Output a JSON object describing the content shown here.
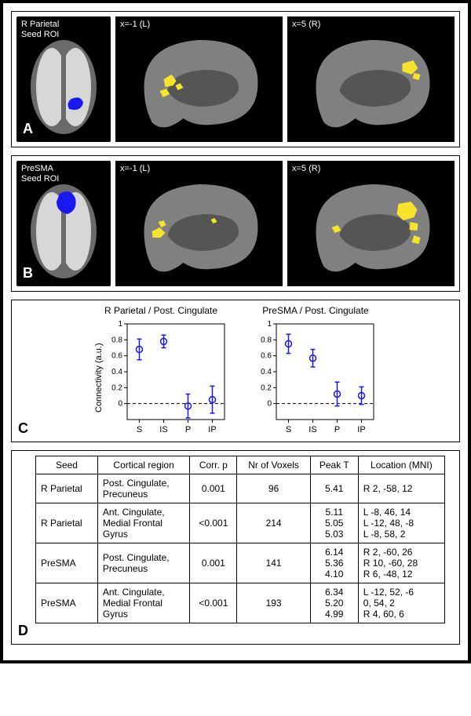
{
  "panelA": {
    "letter": "A",
    "axial_label": "R Parietal\nSeed ROI",
    "axial_seed_color": "#1818f0",
    "sag_left_label": "x=-1 (L)",
    "sag_right_label": "x=5 (R)",
    "activation_color": "#f7e22c",
    "brain_gray": "#6a6a6a",
    "brain_white": "#d7d7d7"
  },
  "panelB": {
    "letter": "B",
    "axial_label": "PreSMA\nSeed ROI",
    "axial_seed_color": "#1818f0",
    "sag_left_label": "x=-1 (L)",
    "sag_right_label": "x=5 (R)",
    "activation_color": "#f7e22c",
    "brain_gray": "#6a6a6a",
    "brain_white": "#d7d7d7"
  },
  "panelC": {
    "letter": "C",
    "y_label": "Connectivity (a.u.)",
    "dot_color": "#1818f0",
    "charts": [
      {
        "title": "R Parietal / Post. Cingulate",
        "ylim": [
          -0.2,
          1.0
        ],
        "yticks": [
          0,
          0.2,
          0.4,
          0.6,
          0.8,
          1.0
        ],
        "categories": [
          "S",
          "IS",
          "P",
          "IP"
        ],
        "values": [
          0.68,
          0.78,
          -0.03,
          0.05
        ],
        "errors": [
          0.13,
          0.08,
          0.15,
          0.17
        ]
      },
      {
        "title": "PreSMA / Post. Cingulate",
        "ylim": [
          -0.2,
          1.0
        ],
        "yticks": [
          0,
          0.2,
          0.4,
          0.6,
          0.8,
          1.0
        ],
        "categories": [
          "S",
          "IS",
          "P",
          "IP"
        ],
        "values": [
          0.75,
          0.57,
          0.12,
          0.1
        ],
        "errors": [
          0.12,
          0.11,
          0.15,
          0.11
        ]
      }
    ]
  },
  "panelD": {
    "letter": "D",
    "columns": [
      "Seed",
      "Cortical region",
      "Corr. p",
      "Nr of Voxels",
      "Peak T",
      "Location (MNI)"
    ],
    "rows": [
      {
        "seed": "R Parietal",
        "region": "Post. Cingulate,\nPrecuneus",
        "p": "0.001",
        "vox": "96",
        "peakT": [
          "5.41"
        ],
        "mni": [
          "R  2, -58, 12"
        ]
      },
      {
        "seed": "R Parietal",
        "region": "Ant. Cingulate,\nMedial Frontal\nGyrus",
        "p": "<0.001",
        "vox": "214",
        "peakT": [
          "5.11",
          "5.05",
          "5.03"
        ],
        "mni": [
          "L   -8, 46, 14",
          "L  -12, 48, -8",
          "L   -8, 58, 2"
        ]
      },
      {
        "seed": "PreSMA",
        "region": "Post. Cingulate,\nPrecuneus",
        "p": "0.001",
        "vox": "141",
        "peakT": [
          "6.14",
          "5.36",
          "4.10"
        ],
        "mni": [
          "R  2, -60, 26",
          "R  10, -60, 28",
          "R  6, -48, 12"
        ]
      },
      {
        "seed": "PreSMA",
        "region": "Ant. Cingulate,\nMedial Frontal\nGyrus",
        "p": "<0.001",
        "vox": "193",
        "peakT": [
          "6.34",
          "5.20",
          "4.99"
        ],
        "mni": [
          "L -12, 52, -6",
          "    0, 54, 2",
          "R  4, 60, 6"
        ]
      }
    ]
  },
  "chart_layout": {
    "width": 160,
    "height": 150,
    "axis_color": "#000",
    "zero_line_dash": "4,3",
    "marker_radius": 4,
    "err_cap": 6,
    "tick_fontsize": 10
  }
}
